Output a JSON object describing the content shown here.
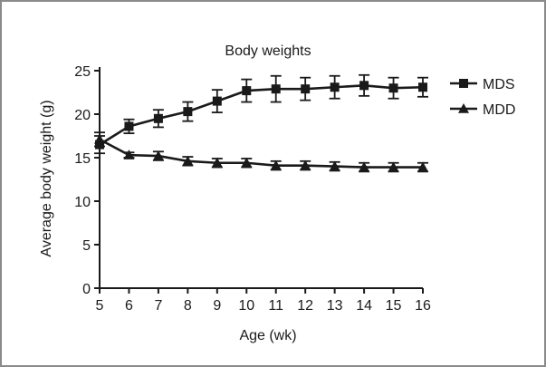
{
  "chart_data": {
    "type": "line",
    "title": "Body weights",
    "xlabel": "Age (wk)",
    "ylabel": "Average body weight (g)",
    "x": [
      5,
      6,
      7,
      8,
      9,
      10,
      11,
      12,
      13,
      14,
      15,
      16
    ],
    "xlim": [
      5,
      16
    ],
    "ylim": [
      0,
      25
    ],
    "yticks": [
      0,
      5,
      10,
      15,
      20,
      25
    ],
    "grid": false,
    "legend_position": "right",
    "series": [
      {
        "name": "MDS",
        "marker": "square",
        "values": [
          16.5,
          18.6,
          19.5,
          20.3,
          21.5,
          22.7,
          22.9,
          22.9,
          23.1,
          23.3,
          23.0,
          23.1
        ],
        "errors": [
          1.0,
          0.8,
          1.0,
          1.1,
          1.3,
          1.3,
          1.5,
          1.3,
          1.3,
          1.2,
          1.2,
          1.1
        ]
      },
      {
        "name": "MDD",
        "marker": "triangle",
        "values": [
          17.1,
          15.3,
          15.2,
          14.6,
          14.4,
          14.4,
          14.1,
          14.1,
          14.0,
          13.9,
          13.9,
          13.9
        ],
        "errors": [
          0.8,
          0.3,
          0.5,
          0.5,
          0.5,
          0.5,
          0.5,
          0.5,
          0.5,
          0.5,
          0.5,
          0.5
        ]
      }
    ]
  },
  "style": {
    "line_color": "#1a1a1a",
    "frame_color": "#8a8a8a"
  }
}
